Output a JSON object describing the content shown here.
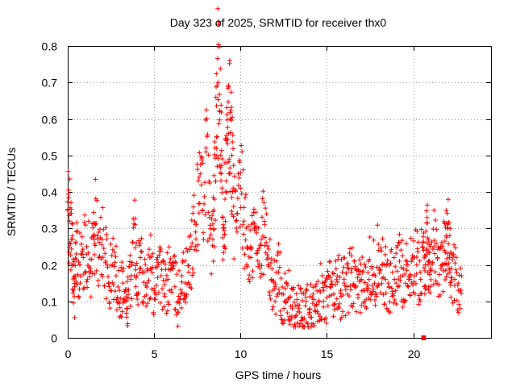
{
  "chart_data": {
    "type": "scatter",
    "title": "Day 323 of 2025, SRMTID for receiver thx0",
    "xlabel": "GPS time / hours",
    "ylabel": "SRMTID / TECUs",
    "xlim": [
      0,
      24.5
    ],
    "ylim": [
      0,
      0.8
    ],
    "xticks": [
      0,
      5,
      10,
      15,
      20
    ],
    "xtick_labels": [
      "0",
      "5",
      "10",
      "15",
      "20"
    ],
    "yticks": [
      0,
      0.1,
      0.2,
      0.3,
      0.4,
      0.5,
      0.6,
      0.7,
      0.8
    ],
    "ytick_labels": [
      "0",
      "0.1",
      "0.2",
      "0.3",
      "0.4",
      "0.5",
      "0.6",
      "0.7",
      "0.8"
    ],
    "grid": true,
    "marker": "plus",
    "color": "#ff0000",
    "series": [
      {
        "name": "SRMTID",
        "x": [
          0.0,
          0.1,
          0.2,
          0.3,
          0.4,
          0.5,
          0.7,
          0.9,
          1.1,
          1.3,
          1.5,
          1.6,
          1.8,
          2.0,
          2.2,
          2.4,
          2.6,
          2.8,
          3.0,
          3.2,
          3.4,
          3.5,
          3.7,
          3.9,
          4.0,
          4.2,
          4.4,
          4.6,
          4.8,
          5.0,
          5.2,
          5.4,
          5.6,
          5.8,
          6.0,
          6.2,
          6.4,
          6.6,
          6.8,
          7.0,
          7.2,
          7.4,
          7.6,
          7.8,
          8.0,
          8.2,
          8.4,
          8.5,
          8.6,
          8.7,
          8.8,
          8.9,
          9.0,
          9.1,
          9.2,
          9.3,
          9.4,
          9.5,
          9.6,
          9.8,
          10.0,
          10.2,
          10.4,
          10.6,
          10.8,
          11.0,
          11.2,
          11.4,
          11.6,
          11.8,
          12.0,
          12.2,
          12.4,
          12.6,
          12.8,
          13.0,
          13.2,
          13.4,
          13.6,
          13.8,
          14.0,
          14.2,
          14.4,
          14.6,
          14.8,
          15.0,
          15.2,
          15.4,
          15.6,
          15.8,
          16.0,
          16.2,
          16.4,
          16.6,
          16.8,
          17.0,
          17.2,
          17.4,
          17.6,
          17.8,
          18.0,
          18.2,
          18.4,
          18.6,
          18.8,
          19.0,
          19.2,
          19.4,
          19.6,
          19.8,
          20.0,
          20.2,
          20.4,
          20.6,
          20.7,
          20.8,
          20.9,
          21.0,
          21.2,
          21.4,
          21.6,
          21.8,
          21.9,
          22.0,
          22.1,
          22.2,
          22.4,
          22.6,
          22.8
        ],
        "y": [
          0.35,
          0.32,
          0.27,
          0.2,
          0.14,
          0.23,
          0.2,
          0.22,
          0.25,
          0.19,
          0.28,
          0.31,
          0.22,
          0.27,
          0.21,
          0.14,
          0.2,
          0.17,
          0.13,
          0.15,
          0.08,
          0.11,
          0.2,
          0.31,
          0.17,
          0.22,
          0.18,
          0.15,
          0.19,
          0.13,
          0.22,
          0.17,
          0.12,
          0.16,
          0.19,
          0.14,
          0.1,
          0.17,
          0.15,
          0.18,
          0.26,
          0.29,
          0.44,
          0.35,
          0.52,
          0.33,
          0.27,
          0.38,
          0.55,
          0.7,
          0.62,
          0.45,
          0.31,
          0.38,
          0.48,
          0.56,
          0.6,
          0.5,
          0.36,
          0.29,
          0.41,
          0.32,
          0.25,
          0.22,
          0.3,
          0.24,
          0.27,
          0.31,
          0.2,
          0.16,
          0.14,
          0.18,
          0.12,
          0.1,
          0.11,
          0.08,
          0.06,
          0.09,
          0.05,
          0.1,
          0.07,
          0.12,
          0.09,
          0.13,
          0.1,
          0.11,
          0.14,
          0.12,
          0.17,
          0.13,
          0.15,
          0.12,
          0.18,
          0.14,
          0.11,
          0.16,
          0.13,
          0.21,
          0.19,
          0.17,
          0.24,
          0.2,
          0.16,
          0.14,
          0.18,
          0.15,
          0.21,
          0.17,
          0.2,
          0.16,
          0.22,
          0.2,
          0.18,
          0.24,
          0.2,
          0.26,
          0.21,
          0.19,
          0.25,
          0.22,
          0.19,
          0.24,
          0.28,
          0.3,
          0.22,
          0.19,
          0.16,
          0.15,
          0.17
        ]
      }
    ],
    "outlier": {
      "x": 20.6,
      "y": 0.0
    }
  }
}
